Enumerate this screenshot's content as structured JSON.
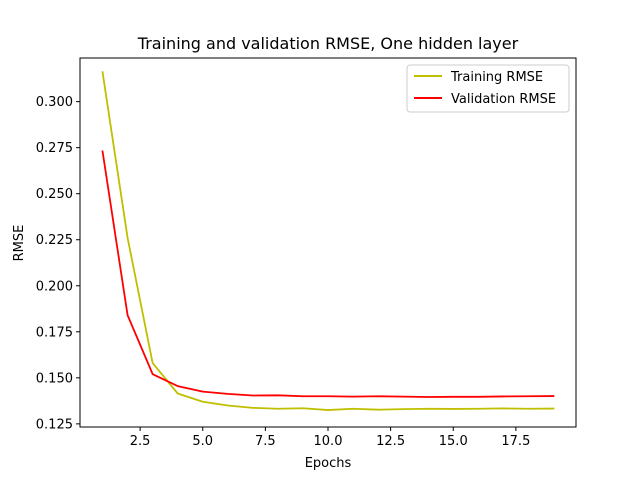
{
  "chart_data": {
    "type": "line",
    "title": "Training and validation RMSE, One hidden layer",
    "xlabel": "Epochs",
    "ylabel": "RMSE",
    "xlim": [
      0.1,
      19.9
    ],
    "ylim": [
      0.1233,
      0.3237
    ],
    "xticks": [
      2.5,
      5.0,
      7.5,
      10.0,
      12.5,
      15.0,
      17.5
    ],
    "xtick_labels": [
      "2.5",
      "5.0",
      "7.5",
      "10.0",
      "12.5",
      "15.0",
      "17.5"
    ],
    "yticks": [
      0.125,
      0.15,
      0.175,
      0.2,
      0.225,
      0.25,
      0.275,
      0.3
    ],
    "ytick_labels": [
      "0.125",
      "0.150",
      "0.175",
      "0.200",
      "0.225",
      "0.250",
      "0.275",
      "0.300"
    ],
    "grid": false,
    "legend_position": "top-right",
    "x": [
      1,
      2,
      3,
      4,
      5,
      6,
      7,
      8,
      9,
      10,
      11,
      12,
      13,
      14,
      15,
      16,
      17,
      18,
      19
    ],
    "series": [
      {
        "name": "Training RMSE",
        "color": "#bfbf00",
        "values": [
          0.316,
          0.226,
          0.158,
          0.1415,
          0.137,
          0.135,
          0.1337,
          0.1332,
          0.1335,
          0.1325,
          0.1332,
          0.1327,
          0.133,
          0.1332,
          0.1331,
          0.1332,
          0.1334,
          0.1332,
          0.1333
        ]
      },
      {
        "name": "Validation RMSE",
        "color": "#ff0000",
        "values": [
          0.273,
          0.184,
          0.152,
          0.1455,
          0.1425,
          0.1413,
          0.1404,
          0.1405,
          0.14,
          0.14,
          0.1398,
          0.14,
          0.1398,
          0.1396,
          0.1397,
          0.1397,
          0.1399,
          0.14,
          0.1401
        ]
      }
    ]
  }
}
